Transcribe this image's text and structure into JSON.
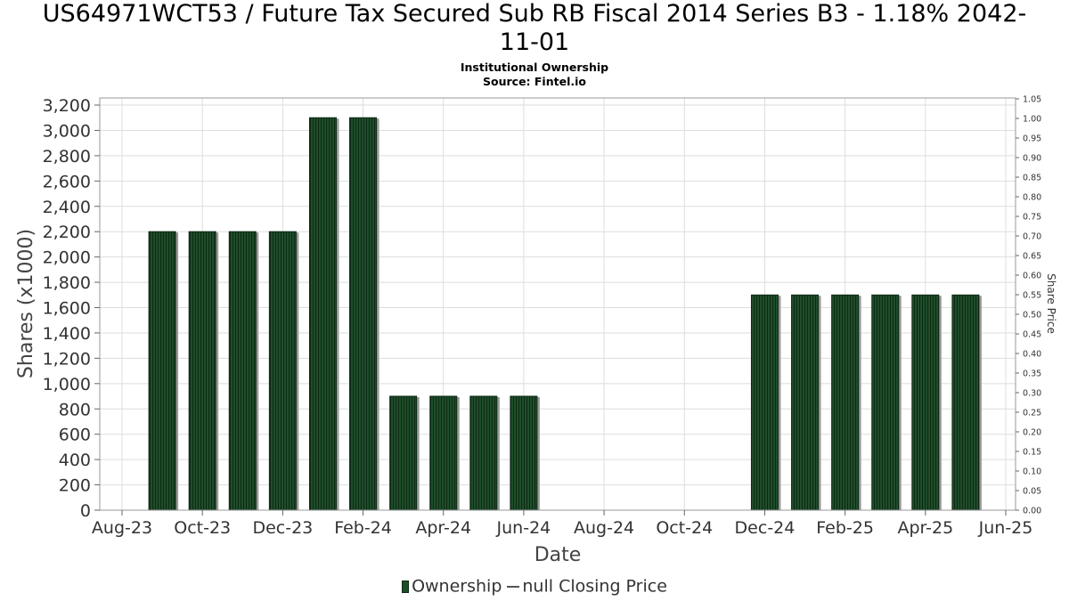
{
  "title_line1": "US64971WCT53 / Future Tax Secured Sub RB Fiscal 2014 Series B3 - 1.18% 2042-",
  "title_line2": "11-01",
  "subtitle_line1": "Institutional Ownership",
  "subtitle_line2": "Source: Fintel.io",
  "legend": {
    "ownership": "Ownership",
    "price": "null Closing Price"
  },
  "colors": {
    "bar": "#1f4d2a",
    "bar_stripe": "#0d2a14",
    "bar_shadow": "#9a9a9a",
    "grid": "#dddddd"
  },
  "chart_data": {
    "type": "bar",
    "title": "US64971WCT53 / Future Tax Secured Sub RB Fiscal 2014 Series B3 - 1.18% 2042-11-01",
    "xlabel": "Date",
    "ylabel": "Shares (x1000)",
    "y2label": "Share Price",
    "ylim": [
      0,
      3200
    ],
    "y2lim": [
      0,
      1.05
    ],
    "x_ticks": [
      "Aug-23",
      "Oct-23",
      "Dec-23",
      "Feb-24",
      "Apr-24",
      "Jun-24",
      "Aug-24",
      "Oct-24",
      "Dec-24",
      "Feb-25",
      "Apr-25",
      "Jun-25"
    ],
    "y_ticks": [
      0,
      200,
      400,
      600,
      800,
      1000,
      1200,
      1400,
      1600,
      1800,
      2000,
      2200,
      2400,
      2600,
      2800,
      3000,
      3200
    ],
    "y_tick_labels": [
      "0",
      "200",
      "400",
      "600",
      "800",
      "1,000",
      "1,200",
      "1,400",
      "1,600",
      "1,800",
      "2,000",
      "2,200",
      "2,400",
      "2,600",
      "2,800",
      "3,000",
      "3,200"
    ],
    "y2_tick_labels": [
      "0.00",
      "0.05",
      "0.10",
      "0.15",
      "0.20",
      "0.25",
      "0.30",
      "0.35",
      "0.40",
      "0.45",
      "0.50",
      "0.55",
      "0.60",
      "0.65",
      "0.70",
      "0.75",
      "0.80",
      "0.85",
      "0.90",
      "0.95",
      "1.00",
      "1.05"
    ],
    "grid": true,
    "legend_position": "bottom",
    "series": [
      {
        "name": "Ownership",
        "points": [
          {
            "x": "2023-09-01",
            "value": 2200
          },
          {
            "x": "2023-10-01",
            "value": 2200
          },
          {
            "x": "2023-11-01",
            "value": 2200
          },
          {
            "x": "2023-12-01",
            "value": 2200
          },
          {
            "x": "2024-01-01",
            "value": 3100
          },
          {
            "x": "2024-02-01",
            "value": 3100
          },
          {
            "x": "2024-03-01",
            "value": 900
          },
          {
            "x": "2024-04-01",
            "value": 900
          },
          {
            "x": "2024-05-01",
            "value": 900
          },
          {
            "x": "2024-06-01",
            "value": 900
          },
          {
            "x": "2024-12-01",
            "value": 1700
          },
          {
            "x": "2025-01-01",
            "value": 1700
          },
          {
            "x": "2025-02-01",
            "value": 1700
          },
          {
            "x": "2025-03-01",
            "value": 1700
          },
          {
            "x": "2025-04-01",
            "value": 1700
          },
          {
            "x": "2025-05-01",
            "value": 1700
          }
        ]
      }
    ]
  }
}
